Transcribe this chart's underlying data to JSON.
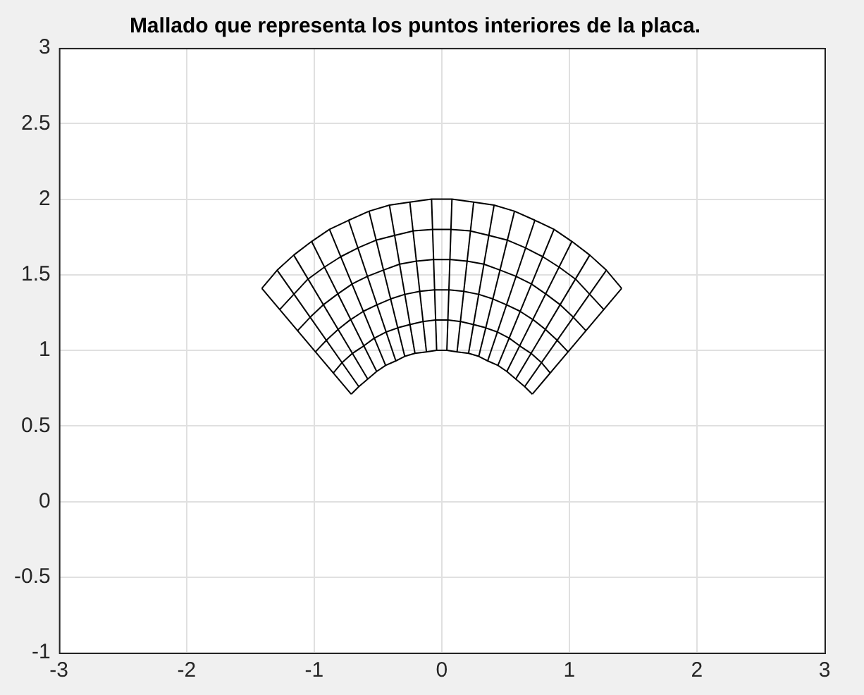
{
  "chart_data": {
    "type": "line",
    "title": "Mallado que representa los puntos interiores de la placa.",
    "xlim": [
      -3,
      3
    ],
    "xticks": [
      -3,
      -2,
      -1,
      0,
      1,
      2,
      3
    ],
    "ylim": [
      -1,
      3
    ],
    "yticks": [
      -1,
      -0.5,
      0,
      0.5,
      1,
      1.5,
      2,
      2.5,
      3
    ],
    "grid": true,
    "marker": "none",
    "legend": false,
    "series": [
      {
        "color": "#000000",
        "x": [
          0.71,
          0.65,
          0.58,
          0.51,
          0.44,
          0.36,
          0.29,
          0.21,
          0.12,
          0.04,
          -0.04,
          -0.12,
          -0.21,
          -0.29,
          -0.36,
          -0.44,
          -0.51,
          -0.58,
          -0.65,
          -0.71
        ],
        "values": [
          0.71,
          0.76,
          0.81,
          0.86,
          0.9,
          0.93,
          0.96,
          0.98,
          0.99,
          1,
          1,
          0.99,
          0.98,
          0.96,
          0.93,
          0.9,
          0.86,
          0.81,
          0.76,
          0.71
        ]
      },
      {
        "color": "#000000",
        "x": [
          0.85,
          0.78,
          0.7,
          0.61,
          0.53,
          0.44,
          0.34,
          0.25,
          0.15,
          0.05,
          -0.05,
          -0.15,
          -0.25,
          -0.34,
          -0.44,
          -0.53,
          -0.61,
          -0.7,
          -0.78,
          -0.85
        ],
        "values": [
          0.85,
          0.92,
          0.98,
          1.03,
          1.08,
          1.12,
          1.15,
          1.17,
          1.19,
          1.2,
          1.2,
          1.19,
          1.17,
          1.15,
          1.12,
          1.08,
          1.03,
          0.98,
          0.92,
          0.85
        ]
      },
      {
        "color": "#000000",
        "x": [
          0.99,
          0.9,
          0.81,
          0.72,
          0.61,
          0.51,
          0.4,
          0.29,
          0.17,
          0.06,
          -0.06,
          -0.17,
          -0.29,
          -0.4,
          -0.51,
          -0.61,
          -0.72,
          -0.81,
          -0.9,
          -0.99
        ],
        "values": [
          0.99,
          1.07,
          1.14,
          1.2,
          1.26,
          1.3,
          1.34,
          1.37,
          1.39,
          1.4,
          1.4,
          1.39,
          1.37,
          1.34,
          1.3,
          1.26,
          1.2,
          1.14,
          1.07,
          0.99
        ]
      },
      {
        "color": "#000000",
        "x": [
          1.13,
          1.03,
          0.93,
          0.82,
          0.7,
          0.58,
          0.46,
          0.33,
          0.2,
          0.07,
          -0.07,
          -0.2,
          -0.33,
          -0.46,
          -0.58,
          -0.7,
          -0.82,
          -0.93,
          -1.03,
          -1.13
        ],
        "values": [
          1.13,
          1.22,
          1.3,
          1.37,
          1.44,
          1.49,
          1.53,
          1.57,
          1.59,
          1.6,
          1.6,
          1.59,
          1.57,
          1.53,
          1.49,
          1.44,
          1.37,
          1.3,
          1.22,
          1.13
        ]
      },
      {
        "color": "#000000",
        "x": [
          1.27,
          1.16,
          1.05,
          0.92,
          0.79,
          0.65,
          0.51,
          0.37,
          0.22,
          0.07,
          -0.07,
          -0.22,
          -0.37,
          -0.51,
          -0.65,
          -0.79,
          -0.92,
          -1.05,
          -1.16,
          -1.27
        ],
        "values": [
          1.27,
          1.37,
          1.47,
          1.55,
          1.62,
          1.68,
          1.73,
          1.76,
          1.79,
          1.8,
          1.8,
          1.79,
          1.76,
          1.73,
          1.68,
          1.62,
          1.55,
          1.47,
          1.37,
          1.27
        ]
      },
      {
        "color": "#000000",
        "x": [
          1.41,
          1.29,
          1.16,
          1.02,
          0.88,
          0.73,
          0.57,
          0.41,
          0.25,
          0.08,
          -0.08,
          -0.25,
          -0.41,
          -0.57,
          -0.73,
          -0.88,
          -1.02,
          -1.16,
          -1.29,
          -1.41
        ],
        "values": [
          1.41,
          1.53,
          1.63,
          1.72,
          1.8,
          1.86,
          1.92,
          1.96,
          1.98,
          2,
          2,
          1.98,
          1.96,
          1.92,
          1.86,
          1.8,
          1.72,
          1.63,
          1.53,
          1.41
        ]
      },
      {
        "color": "#000000",
        "x": [
          0.71,
          1.41
        ],
        "values": [
          0.71,
          1.41
        ]
      },
      {
        "color": "#000000",
        "x": [
          0.65,
          1.29
        ],
        "values": [
          0.76,
          1.53
        ]
      },
      {
        "color": "#000000",
        "x": [
          0.58,
          1.16
        ],
        "values": [
          0.81,
          1.63
        ]
      },
      {
        "color": "#000000",
        "x": [
          0.51,
          1.02
        ],
        "values": [
          0.86,
          1.72
        ]
      },
      {
        "color": "#000000",
        "x": [
          0.44,
          0.88
        ],
        "values": [
          0.9,
          1.8
        ]
      },
      {
        "color": "#000000",
        "x": [
          0.36,
          0.73
        ],
        "values": [
          0.93,
          1.86
        ]
      },
      {
        "color": "#000000",
        "x": [
          0.29,
          0.57
        ],
        "values": [
          0.96,
          1.92
        ]
      },
      {
        "color": "#000000",
        "x": [
          0.21,
          0.41
        ],
        "values": [
          0.98,
          1.96
        ]
      },
      {
        "color": "#000000",
        "x": [
          0.12,
          0.25
        ],
        "values": [
          0.99,
          1.98
        ]
      },
      {
        "color": "#000000",
        "x": [
          0.04,
          0.08
        ],
        "values": [
          1,
          2
        ]
      },
      {
        "color": "#000000",
        "x": [
          -0.04,
          -0.08
        ],
        "values": [
          1,
          2
        ]
      },
      {
        "color": "#000000",
        "x": [
          -0.12,
          -0.25
        ],
        "values": [
          0.99,
          1.98
        ]
      },
      {
        "color": "#000000",
        "x": [
          -0.21,
          -0.41
        ],
        "values": [
          0.98,
          1.96
        ]
      },
      {
        "color": "#000000",
        "x": [
          -0.29,
          -0.57
        ],
        "values": [
          0.96,
          1.92
        ]
      },
      {
        "color": "#000000",
        "x": [
          -0.36,
          -0.73
        ],
        "values": [
          0.93,
          1.86
        ]
      },
      {
        "color": "#000000",
        "x": [
          -0.44,
          -0.88
        ],
        "values": [
          0.9,
          1.8
        ]
      },
      {
        "color": "#000000",
        "x": [
          -0.51,
          -1.02
        ],
        "values": [
          0.86,
          1.72
        ]
      },
      {
        "color": "#000000",
        "x": [
          -0.58,
          -1.16
        ],
        "values": [
          0.81,
          1.63
        ]
      },
      {
        "color": "#000000",
        "x": [
          -0.65,
          -1.29
        ],
        "values": [
          0.76,
          1.53
        ]
      },
      {
        "color": "#000000",
        "x": [
          -0.71,
          -1.41
        ],
        "values": [
          0.71,
          1.41
        ]
      }
    ]
  }
}
